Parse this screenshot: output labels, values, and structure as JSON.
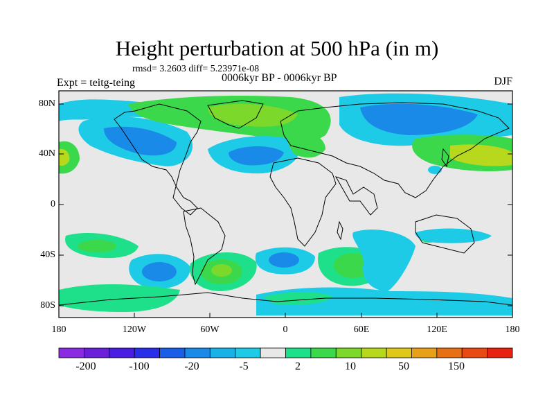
{
  "title": "Height perturbation at 500 hPa (in m)",
  "stats": "rmsd= 3.2603 diff= 5.23971e-08",
  "left_label": "Expt = teitg-teing",
  "center_label": "0006kyr BP - 0006kyr BP",
  "right_label": "DJF",
  "lat_ticks": [
    "80N",
    "40N",
    "0",
    "40S",
    "80S"
  ],
  "lon_ticks": [
    "180",
    "120W",
    "60W",
    "0",
    "60E",
    "120E",
    "180"
  ],
  "colorbar": {
    "labels": [
      "-200",
      "-100",
      "-20",
      "-5",
      "2",
      "10",
      "50",
      "150"
    ],
    "colors": [
      "#8a2be2",
      "#6a20d8",
      "#4a1ee0",
      "#2a2ee8",
      "#1a5ee8",
      "#1a8ae8",
      "#19b2e6",
      "#1ecbe6",
      "#e8e8e8",
      "#1ee08a",
      "#3ad84a",
      "#7cd82a",
      "#b8d81e",
      "#e0c81a",
      "#e8a018",
      "#e87014",
      "#e84a14",
      "#e82212"
    ]
  }
}
